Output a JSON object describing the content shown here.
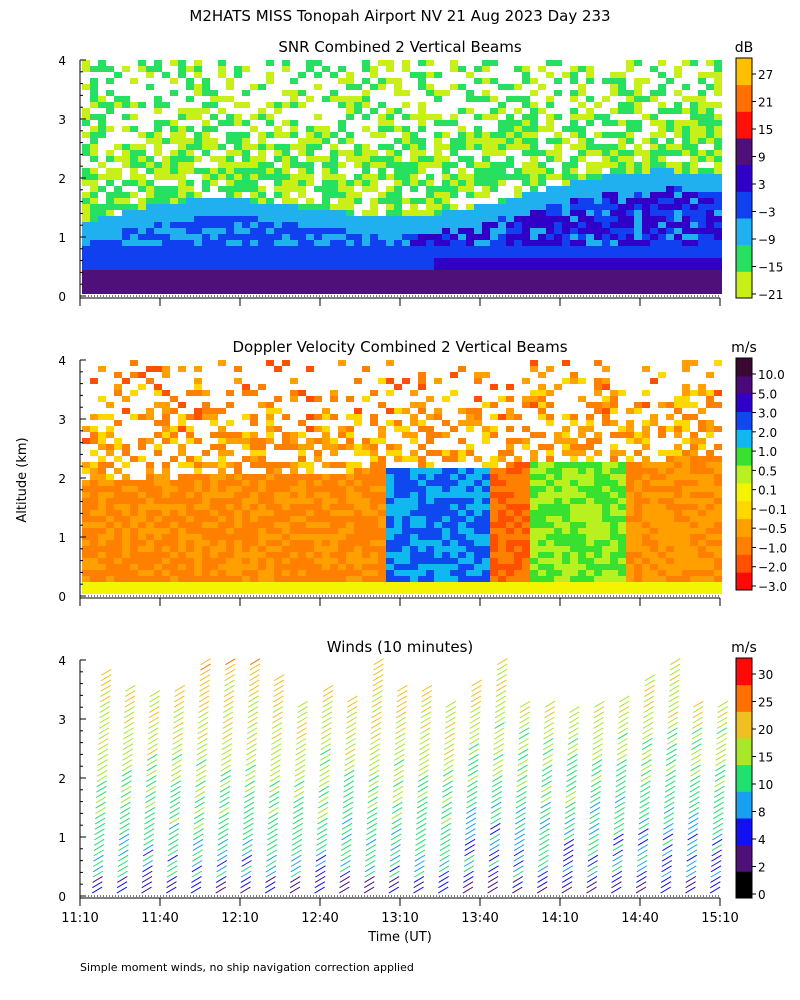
{
  "title": "M2HATS MISS Tonopah Airport NV  21 Aug 2023 Day 233",
  "ylabel": "Altitude (km)",
  "xlabel": "Time (UT)",
  "footnote": "Simple moment winds, no ship navigation correction applied",
  "chart_data": [
    {
      "type": "heatmap",
      "title": "SNR Combined 2 Vertical Beams",
      "colorbar_unit": "dB",
      "colorbar_ticks": [
        "27",
        "21",
        "15",
        "9",
        "3",
        "−3",
        "−9",
        "−15",
        "−21"
      ],
      "colorbar_colors": [
        "#c8f018",
        "#28e060",
        "#20b0f0",
        "#1040f0",
        "#3000c8",
        "#50107a",
        "#ff1008",
        "#ff7000",
        "#ffc000"
      ],
      "x_ticks": [
        "11:10",
        "11:40",
        "12:10",
        "12:40",
        "13:10",
        "13:40",
        "14:10",
        "14:40",
        "15:10"
      ],
      "y_ticks": [
        "0",
        "1",
        "2",
        "3",
        "4"
      ],
      "xlim": [
        "11:10",
        "15:10"
      ],
      "ylim": [
        0,
        4
      ],
      "grid": false
    },
    {
      "type": "heatmap",
      "title": "Doppler Velocity Combined 2 Vertical Beams",
      "colorbar_unit": "m/s",
      "colorbar_ticks": [
        "10.0",
        "5.0",
        "3.0",
        "2.0",
        "1.0",
        "0.5",
        "0.1",
        "−0.1",
        "−0.5",
        "−1.0",
        "−2.0",
        "−3.0"
      ],
      "colorbar_colors": [
        "#ff0808",
        "#ff5000",
        "#ff8000",
        "#ffa000",
        "#ffd800",
        "#f4f400",
        "#b8f020",
        "#38e030",
        "#10b8f0",
        "#1048f0",
        "#3000c8",
        "#4a0878",
        "#380830"
      ],
      "x_ticks": [
        "11:10",
        "11:40",
        "12:10",
        "12:40",
        "13:10",
        "13:40",
        "14:10",
        "14:40",
        "15:10"
      ],
      "y_ticks": [
        "0",
        "1",
        "2",
        "3",
        "4"
      ],
      "xlim": [
        "11:10",
        "15:10"
      ],
      "ylim": [
        0,
        4
      ],
      "grid": false
    },
    {
      "type": "scatter",
      "title": "Winds (10 minutes)",
      "colorbar_unit": "m/s",
      "colorbar_ticks": [
        "30",
        "25",
        "20",
        "15",
        "10",
        "8",
        "4",
        "2",
        "0"
      ],
      "colorbar_colors": [
        "#000000",
        "#50107a",
        "#1010f0",
        "#18a0f0",
        "#20e070",
        "#a8e828",
        "#f0c020",
        "#ff7000",
        "#ff0808"
      ],
      "x_ticks": [
        "11:10",
        "11:40",
        "12:10",
        "12:40",
        "13:10",
        "13:40",
        "14:10",
        "14:40",
        "15:10"
      ],
      "y_ticks": [
        "0",
        "1",
        "2",
        "3",
        "4"
      ],
      "xlim": [
        "11:10",
        "15:10"
      ],
      "ylim": [
        0,
        4
      ],
      "grid": false
    }
  ]
}
